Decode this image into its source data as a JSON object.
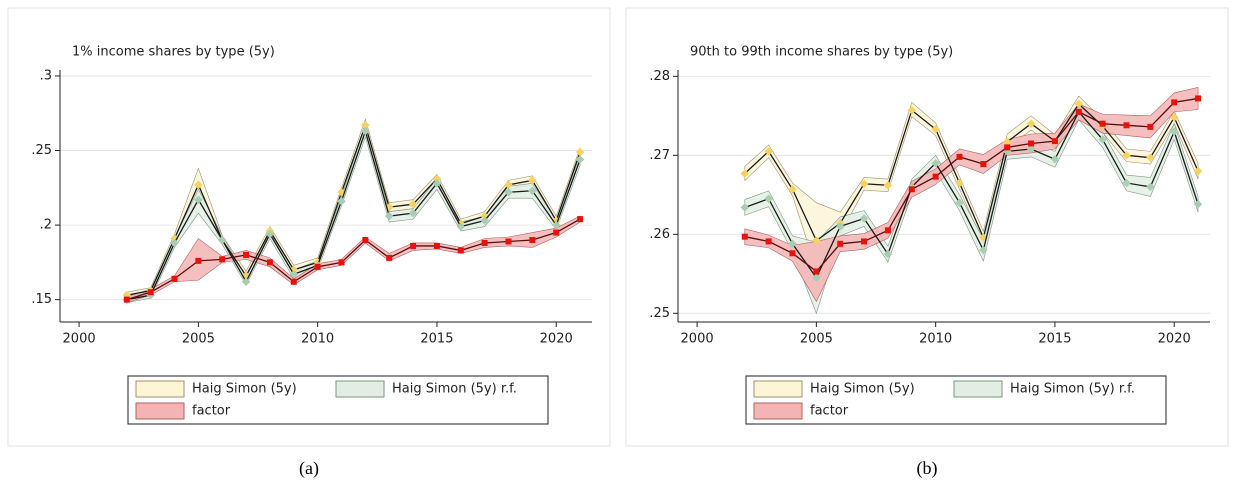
{
  "chart_data": [
    {
      "type": "band-line",
      "title": "1% income shares by type (5y)",
      "caption": "(a)",
      "x": [
        2002,
        2003,
        2004,
        2005,
        2006,
        2007,
        2008,
        2009,
        2010,
        2011,
        2012,
        2013,
        2014,
        2015,
        2016,
        2017,
        2018,
        2019,
        2020,
        2021
      ],
      "xlim": [
        1999.2,
        2021.5
      ],
      "xticks": [
        2000,
        2005,
        2010,
        2015,
        2020
      ],
      "ylim": [
        0.135,
        0.304
      ],
      "yticks": [
        {
          "value": 0.15,
          "label": ".15"
        },
        {
          "value": 0.2,
          "label": ".2"
        },
        {
          "value": 0.25,
          "label": ".25"
        },
        {
          "value": 0.3,
          "label": ".3"
        }
      ],
      "grid": true,
      "series": [
        {
          "name": "Haig Simon (5y)",
          "color": "#1a1a1a",
          "marker_color": "#f5d35e",
          "band_color": "#fdf5d6",
          "band_edge": "#9c9270",
          "values": [
            0.153,
            0.156,
            0.191,
            0.227,
            0.19,
            0.166,
            0.196,
            0.17,
            0.175,
            0.222,
            0.267,
            0.212,
            0.214,
            0.231,
            0.201,
            0.206,
            0.227,
            0.23,
            0.203,
            0.249
          ],
          "lower": [
            0.151,
            0.154,
            0.187,
            0.219,
            0.187,
            0.163,
            0.193,
            0.167,
            0.172,
            0.219,
            0.263,
            0.209,
            0.211,
            0.228,
            0.198,
            0.203,
            0.224,
            0.227,
            0.2,
            0.246
          ],
          "upper": [
            0.155,
            0.158,
            0.194,
            0.238,
            0.193,
            0.169,
            0.199,
            0.173,
            0.178,
            0.225,
            0.271,
            0.215,
            0.217,
            0.234,
            0.204,
            0.209,
            0.23,
            0.233,
            0.206,
            0.252
          ]
        },
        {
          "name": "Haig Simon (5y) r.f.",
          "color": "#1a1a1a",
          "marker_color": "#a9cdb2",
          "band_color": "#e2eee3",
          "band_edge": "#7d9683",
          "values": [
            0.15,
            0.153,
            0.188,
            0.217,
            0.19,
            0.162,
            0.194,
            0.167,
            0.173,
            0.216,
            0.263,
            0.206,
            0.208,
            0.228,
            0.199,
            0.203,
            0.222,
            0.223,
            0.2,
            0.244
          ],
          "lower": [
            0.148,
            0.151,
            0.185,
            0.208,
            0.187,
            0.16,
            0.191,
            0.164,
            0.17,
            0.213,
            0.259,
            0.202,
            0.204,
            0.224,
            0.196,
            0.199,
            0.218,
            0.218,
            0.197,
            0.24
          ],
          "upper": [
            0.152,
            0.155,
            0.191,
            0.224,
            0.193,
            0.165,
            0.197,
            0.17,
            0.176,
            0.219,
            0.267,
            0.209,
            0.211,
            0.231,
            0.202,
            0.206,
            0.226,
            0.228,
            0.203,
            0.247
          ]
        },
        {
          "name": "factor",
          "color": "#5a0d0d",
          "marker_color": "#e8120c",
          "band_color": "#f4b4b4",
          "band_edge": "#b06060",
          "values": [
            0.15,
            0.155,
            0.164,
            0.176,
            0.177,
            0.18,
            0.175,
            0.162,
            0.172,
            0.175,
            0.19,
            0.178,
            0.186,
            0.186,
            0.183,
            0.188,
            0.189,
            0.19,
            0.195,
            0.204
          ],
          "lower": [
            0.148,
            0.153,
            0.162,
            0.163,
            0.175,
            0.177,
            0.172,
            0.16,
            0.17,
            0.173,
            0.188,
            0.176,
            0.183,
            0.184,
            0.181,
            0.185,
            0.186,
            0.185,
            0.192,
            0.202
          ],
          "upper": [
            0.152,
            0.157,
            0.166,
            0.191,
            0.179,
            0.183,
            0.178,
            0.164,
            0.174,
            0.177,
            0.192,
            0.181,
            0.188,
            0.188,
            0.185,
            0.191,
            0.192,
            0.195,
            0.198,
            0.206
          ]
        }
      ]
    },
    {
      "type": "band-line",
      "title": "90th to 99th income shares by type (5y)",
      "caption": "(b)",
      "x": [
        2002,
        2003,
        2004,
        2005,
        2006,
        2007,
        2008,
        2009,
        2010,
        2011,
        2012,
        2013,
        2014,
        2015,
        2016,
        2017,
        2018,
        2019,
        2020,
        2021
      ],
      "xlim": [
        1999.2,
        2021.5
      ],
      "xticks": [
        2000,
        2005,
        2010,
        2015,
        2020
      ],
      "ylim": [
        0.2489,
        0.2808
      ],
      "yticks": [
        {
          "value": 0.25,
          "label": ".25"
        },
        {
          "value": 0.26,
          "label": ".26"
        },
        {
          "value": 0.27,
          "label": ".27"
        },
        {
          "value": 0.28,
          "label": ".28"
        }
      ],
      "grid": true,
      "series": [
        {
          "name": "Haig Simon (5y)",
          "color": "#1a1a1a",
          "marker_color": "#f5d35e",
          "band_color": "#fdf5d6",
          "band_edge": "#9c9270",
          "values": [
            0.2677,
            0.2705,
            0.2657,
            0.2592,
            0.2614,
            0.2664,
            0.2662,
            0.2757,
            0.2733,
            0.2665,
            0.2596,
            0.2717,
            0.274,
            0.2718,
            0.2765,
            0.2737,
            0.27,
            0.2697,
            0.2748,
            0.268
          ],
          "lower": [
            0.2668,
            0.2697,
            0.2649,
            0.2555,
            0.26,
            0.2656,
            0.2654,
            0.2749,
            0.2725,
            0.2657,
            0.2588,
            0.2709,
            0.2732,
            0.271,
            0.2757,
            0.2729,
            0.2692,
            0.2689,
            0.274,
            0.267
          ],
          "upper": [
            0.2686,
            0.2713,
            0.2665,
            0.264,
            0.2628,
            0.2672,
            0.267,
            0.2767,
            0.2741,
            0.2673,
            0.2604,
            0.2727,
            0.275,
            0.2726,
            0.2775,
            0.2745,
            0.2708,
            0.2705,
            0.2756,
            0.269
          ]
        },
        {
          "name": "Haig Simon (5y) r.f.",
          "color": "#1a1a1a",
          "marker_color": "#a9cdb2",
          "band_color": "#e2eee3",
          "band_edge": "#7d9683",
          "values": [
            0.2634,
            0.2645,
            0.2588,
            0.2545,
            0.261,
            0.262,
            0.2575,
            0.266,
            0.269,
            0.264,
            0.258,
            0.2705,
            0.2708,
            0.2695,
            0.2755,
            0.272,
            0.2665,
            0.266,
            0.273,
            0.2638
          ],
          "lower": [
            0.2624,
            0.2635,
            0.2578,
            0.25,
            0.2598,
            0.261,
            0.2565,
            0.265,
            0.268,
            0.263,
            0.2566,
            0.2695,
            0.2698,
            0.2685,
            0.2745,
            0.271,
            0.2655,
            0.2648,
            0.272,
            0.2628
          ],
          "upper": [
            0.2644,
            0.2655,
            0.2598,
            0.259,
            0.2622,
            0.263,
            0.2585,
            0.267,
            0.27,
            0.265,
            0.2594,
            0.2715,
            0.2718,
            0.2705,
            0.2765,
            0.273,
            0.2675,
            0.2672,
            0.274,
            0.2648
          ]
        },
        {
          "name": "factor",
          "color": "#5a0d0d",
          "marker_color": "#e8120c",
          "band_color": "#f4b4b4",
          "band_edge": "#b06060",
          "values": [
            0.2597,
            0.2591,
            0.2576,
            0.2553,
            0.2588,
            0.2591,
            0.2605,
            0.2657,
            0.2673,
            0.2698,
            0.2689,
            0.271,
            0.2715,
            0.2718,
            0.2755,
            0.274,
            0.2738,
            0.2736,
            0.2767,
            0.2772
          ],
          "lower": [
            0.2587,
            0.2583,
            0.2566,
            0.2515,
            0.2578,
            0.2581,
            0.2595,
            0.2647,
            0.2663,
            0.2688,
            0.2677,
            0.27,
            0.2703,
            0.2708,
            0.2745,
            0.2728,
            0.2725,
            0.2722,
            0.2755,
            0.2758
          ],
          "upper": [
            0.2607,
            0.2599,
            0.2586,
            0.2591,
            0.2598,
            0.2601,
            0.2615,
            0.2667,
            0.2683,
            0.2708,
            0.2701,
            0.272,
            0.2727,
            0.2728,
            0.2765,
            0.2752,
            0.2751,
            0.275,
            0.2779,
            0.2786
          ]
        }
      ]
    }
  ]
}
